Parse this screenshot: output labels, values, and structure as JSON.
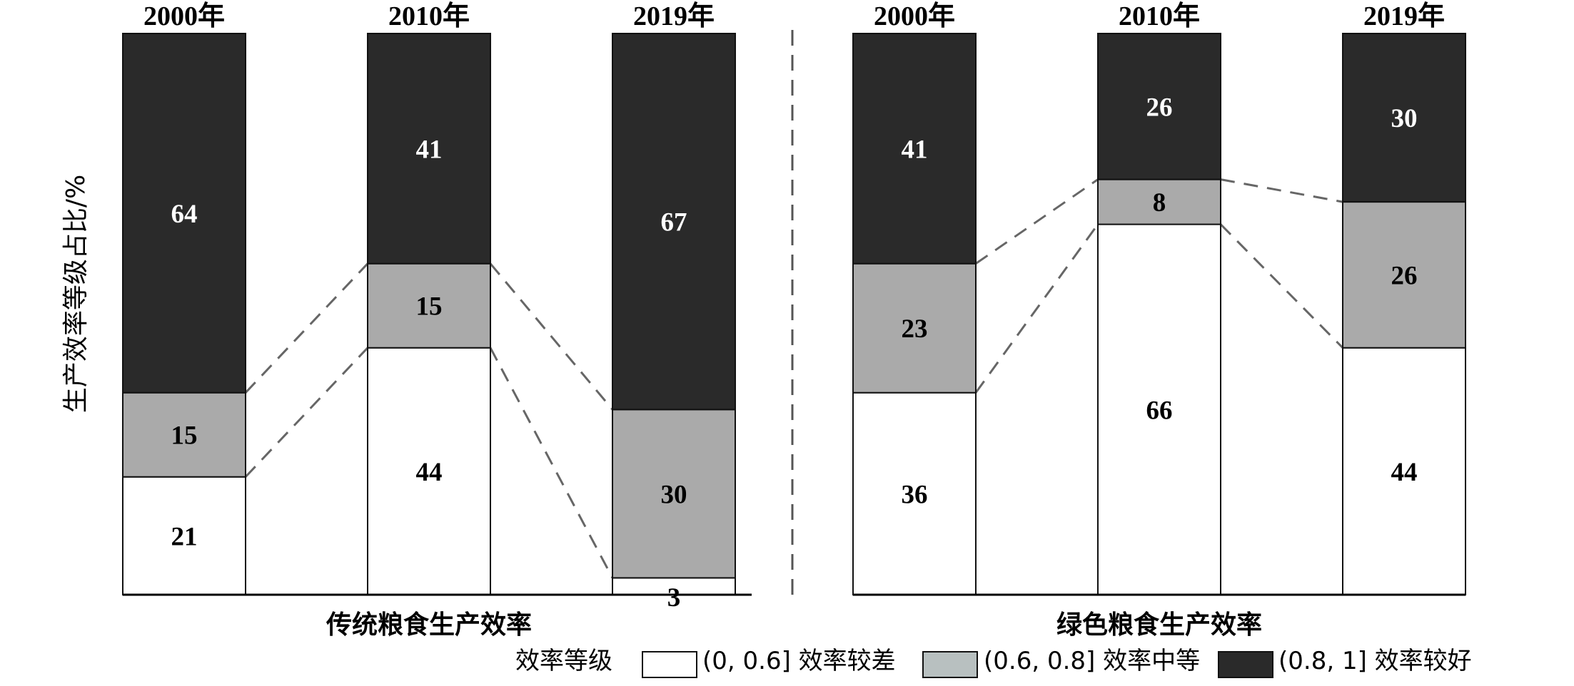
{
  "chart_data": {
    "type": "bar",
    "stacked": true,
    "normalized_percent": true,
    "ylabel": "生产效率等级占比/%",
    "ylim": [
      0,
      100
    ],
    "grid": false,
    "legend_placement": "bottom-right",
    "legend_title": "效率等级",
    "series": [
      {
        "name": "(0, 0.6] 效率较差",
        "color": "#ffffff"
      },
      {
        "name": "(0.6, 0.8] 效率中等",
        "color": "#aaaaaa"
      },
      {
        "name": "(0.8, 1] 效率较好",
        "color": "#2a2a2a"
      }
    ],
    "groups": [
      {
        "label": "传统粮食生产效率",
        "categories": [
          "2000年",
          "2010年",
          "2019年"
        ],
        "values": [
          [
            21,
            44,
            3
          ],
          [
            15,
            15,
            30
          ],
          [
            64,
            41,
            67
          ]
        ]
      },
      {
        "label": "绿色粮食生产效率",
        "categories": [
          "2000年",
          "2010年",
          "2019年"
        ],
        "values": [
          [
            36,
            66,
            44
          ],
          [
            23,
            8,
            26
          ],
          [
            41,
            26,
            30
          ]
        ]
      }
    ]
  }
}
